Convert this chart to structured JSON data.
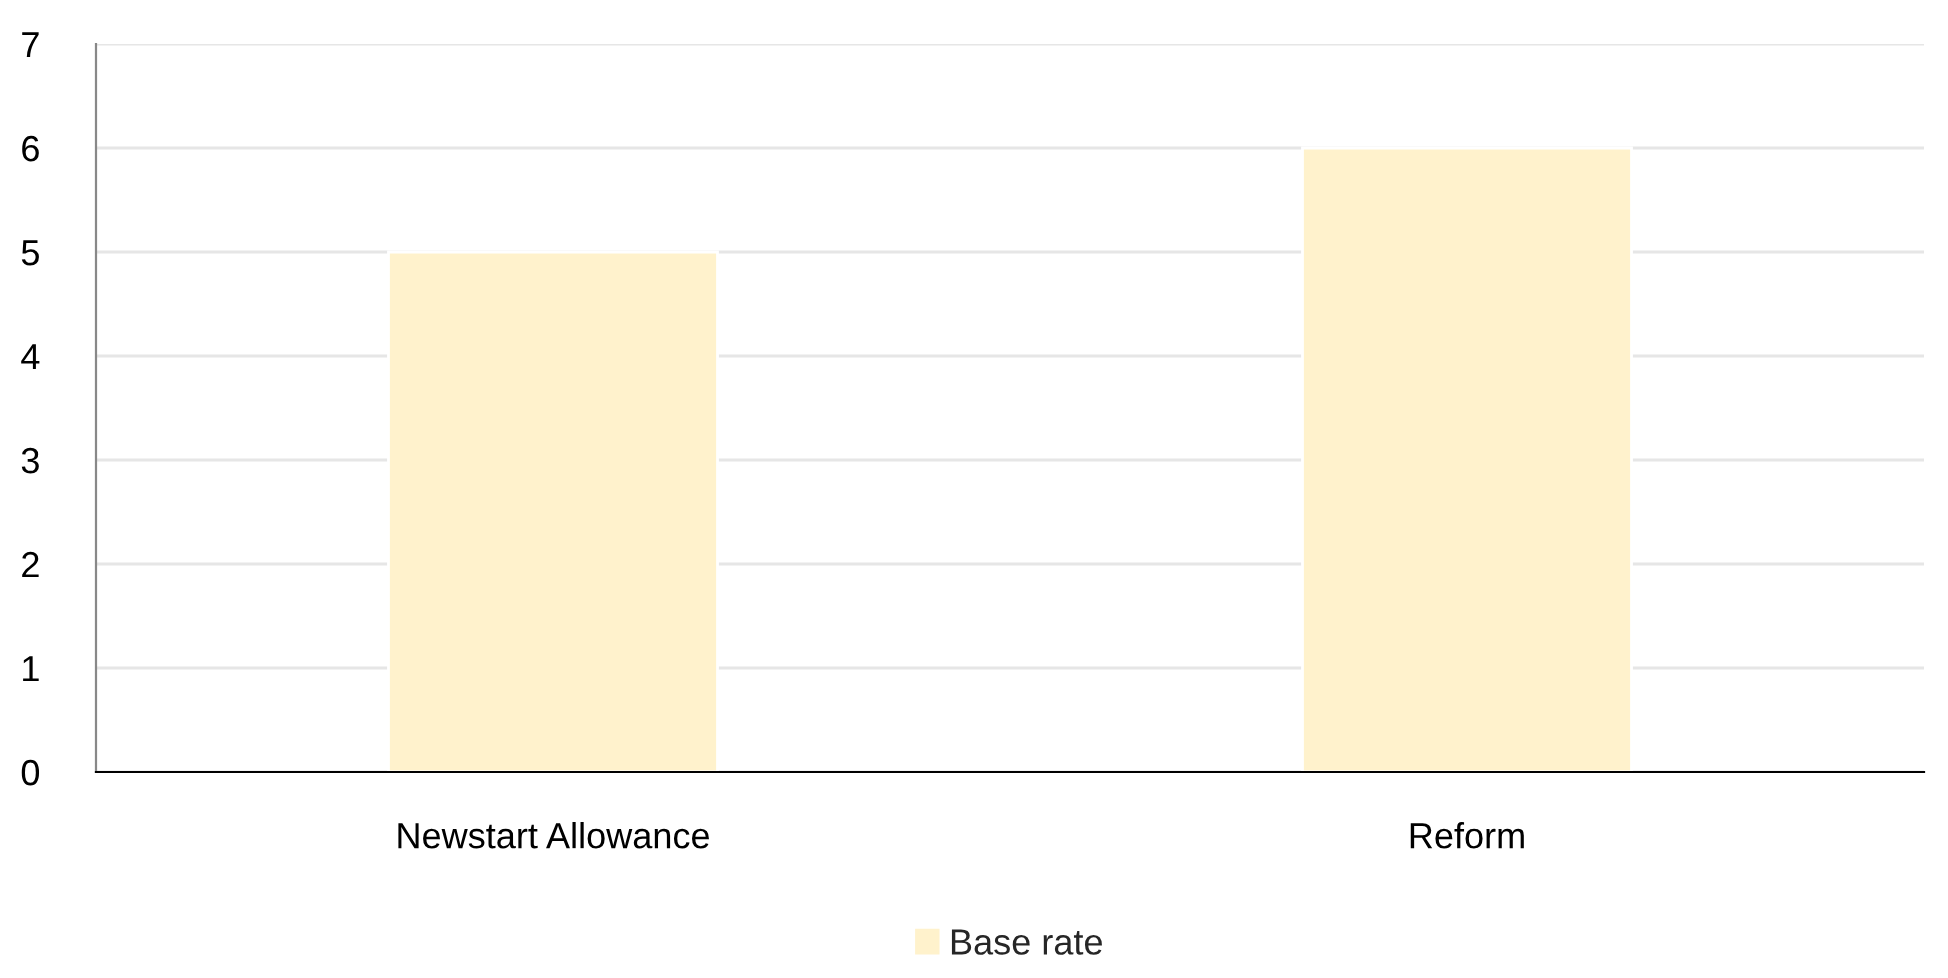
{
  "chart_data": {
    "type": "bar",
    "categories": [
      "Newstart Allowance",
      "Reform"
    ],
    "series": [
      {
        "name": "Base rate",
        "color": "#fff2cc",
        "values": [
          5,
          6
        ]
      }
    ],
    "ylim": [
      0,
      7
    ],
    "yticks": [
      0,
      1,
      2,
      3,
      4,
      5,
      6,
      7
    ],
    "grid": "y",
    "legend": "bottom"
  }
}
